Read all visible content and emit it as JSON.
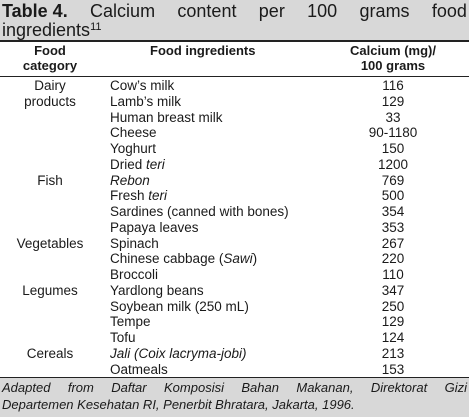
{
  "caption": {
    "label": "Table 4.",
    "line1_words": [
      "Calcium",
      "content",
      "per",
      "100",
      "grams",
      "food"
    ],
    "line2": "ingredients",
    "footnote_ref": "11"
  },
  "headers": {
    "category_line1": "Food",
    "category_line2": "category",
    "ingredients": "Food ingredients",
    "calcium_line1": "Calcium (mg)/",
    "calcium_line2": "100 grams"
  },
  "rows": [
    {
      "category": "Dairy",
      "pre": "Cow’s milk",
      "it": "",
      "post": "",
      "value": "116"
    },
    {
      "category": "products",
      "pre": "Lamb’s milk",
      "it": "",
      "post": "",
      "value": "129"
    },
    {
      "category": "",
      "pre": "Human breast milk",
      "it": "",
      "post": "",
      "value": "33"
    },
    {
      "category": "",
      "pre": "Cheese",
      "it": "",
      "post": "",
      "value": "90-1180"
    },
    {
      "category": "",
      "pre": "Yoghurt",
      "it": "",
      "post": "",
      "value": "150"
    },
    {
      "category": "",
      "pre": "Dried ",
      "it": "teri",
      "post": "",
      "value": "1200"
    },
    {
      "category": "Fish",
      "pre": "",
      "it": "Rebon",
      "post": "",
      "value": "769"
    },
    {
      "category": "",
      "pre": "Fresh ",
      "it": "teri",
      "post": "",
      "value": "500"
    },
    {
      "category": "",
      "pre": "Sardines (canned with bones)",
      "it": "",
      "post": "",
      "value": "354"
    },
    {
      "category": "",
      "pre": "Papaya leaves",
      "it": "",
      "post": "",
      "value": "353"
    },
    {
      "category": "Vegetables",
      "pre": "Spinach",
      "it": "",
      "post": "",
      "value": "267"
    },
    {
      "category": "",
      "pre": "Chinese cabbage (",
      "it": "Sawi",
      "post": ")",
      "value": "220"
    },
    {
      "category": "",
      "pre": "Broccoli",
      "it": "",
      "post": "",
      "value": "110"
    },
    {
      "category": "Legumes",
      "pre": "Yardlong beans",
      "it": "",
      "post": "",
      "value": "347"
    },
    {
      "category": "",
      "pre": "Soybean milk (250 mL)",
      "it": "",
      "post": "",
      "value": "250"
    },
    {
      "category": "",
      "pre": "Tempe",
      "it": "",
      "post": "",
      "value": "129"
    },
    {
      "category": "",
      "pre": "Tofu",
      "it": "",
      "post": "",
      "value": "124"
    },
    {
      "category": "Cereals",
      "pre": "",
      "it": "Jali (Coix lacryma-jobi)",
      "post": "",
      "value": "213"
    },
    {
      "category": "",
      "pre": "Oatmeals",
      "it": "",
      "post": "",
      "value": "153"
    }
  ],
  "footnote": {
    "line1_words": [
      "Adapted",
      "from",
      "Daftar",
      "Komposisi",
      "Bahan",
      "Makanan,",
      "Direktorat",
      "Gizi"
    ],
    "line2": "Departemen Kesehatan RI, Penerbit Bhratara, Jakarta, 1996."
  }
}
